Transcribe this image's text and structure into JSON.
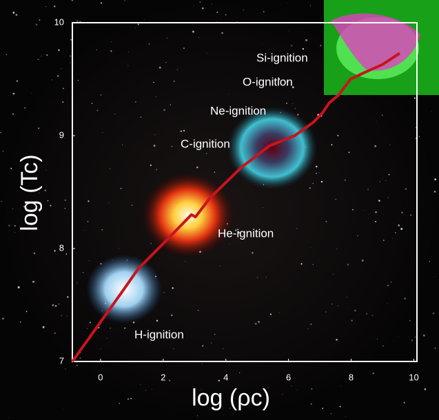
{
  "chart_data": {
    "type": "line",
    "xlabel": "log (ρc)",
    "ylabel": "log (Tc)",
    "x": [
      -0.9,
      0.67,
      1.2,
      2.2,
      2.9,
      3.03,
      3.5,
      4.5,
      5.39,
      6.2,
      6.8,
      7.08,
      7.3,
      7.6,
      7.98,
      8.43,
      9.0,
      9.55
    ],
    "series": [
      {
        "color": "#c8141e",
        "values": [
          7.0,
          7.61,
          7.82,
          8.1,
          8.3,
          8.28,
          8.45,
          8.72,
          8.91,
          9.0,
          9.12,
          9.2,
          9.29,
          9.36,
          9.5,
          9.56,
          9.63,
          9.73
        ]
      }
    ],
    "xlim": [
      -0.9,
      10.1
    ],
    "ylim": [
      7,
      10
    ],
    "xticks": [
      0,
      2,
      4,
      6,
      8,
      10
    ],
    "yticks": [
      7,
      8,
      9,
      10
    ],
    "annotations": [
      "Si-ignition",
      "O-ignition",
      "Ne-ignition",
      "C-ignition",
      "He-ignition",
      "H-ignition"
    ]
  }
}
